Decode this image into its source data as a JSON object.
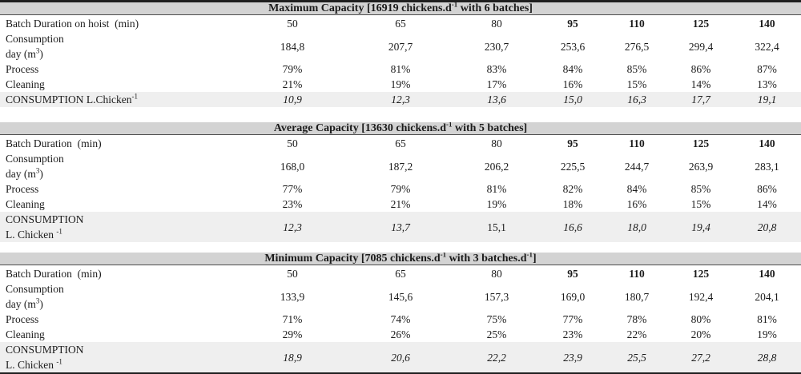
{
  "colors": {
    "caption_bg": "#d3d3d3",
    "highlight_bg": "#efefef",
    "border_dark": "#1f1f1f",
    "caption_rule": "#4d4d4d",
    "text": "#1b1b1b"
  },
  "tables": [
    {
      "name": "maximum-capacity",
      "caption": {
        "pre": "Maximum Capacity [16919 chickens.d",
        "sup1": "-1",
        "mid": " with 6 batches]",
        "sup2": "",
        "post": ""
      },
      "duration": {
        "label": "Batch Duration on hoist  (min)",
        "values": [
          "50",
          "65",
          "80",
          "95",
          "110",
          "125",
          "140"
        ]
      },
      "consumption_day": {
        "line1": "Consumption",
        "line2_pre": "day (m",
        "line2_sup": "3",
        "line2_post": ")",
        "values": [
          "184,8",
          "207,7",
          "230,7",
          "253,6",
          "276,5",
          "299,4",
          "322,4"
        ]
      },
      "process": {
        "label": "Process",
        "values": [
          "79%",
          "81%",
          "83%",
          "84%",
          "85%",
          "86%",
          "87%"
        ]
      },
      "cleaning": {
        "label": "Cleaning",
        "values": [
          "21%",
          "19%",
          "17%",
          "16%",
          "15%",
          "14%",
          "13%"
        ]
      },
      "consumption_chicken": {
        "line1": "CONSUMPTION L.Chicken",
        "line2": "",
        "sup": "-1",
        "values": [
          "10,9",
          "12,3",
          "13,6",
          "15,0",
          "16,3",
          "17,7",
          "19,1"
        ]
      }
    },
    {
      "name": "average-capacity",
      "caption": {
        "pre": "Average Capacity [13630 chickens.d",
        "sup1": "-1",
        "mid": " with 5 batches]",
        "sup2": "",
        "post": ""
      },
      "duration": {
        "label": "Batch Duration  (min)",
        "values": [
          "50",
          "65",
          "80",
          "95",
          "110",
          "125",
          "140"
        ]
      },
      "consumption_day": {
        "line1": "Consumption",
        "line2_pre": "day (m",
        "line2_sup": "3",
        "line2_post": ")",
        "values": [
          "168,0",
          "187,2",
          "206,2",
          "225,5",
          "244,7",
          "263,9",
          "283,1"
        ]
      },
      "process": {
        "label": "Process",
        "values": [
          "77%",
          "79%",
          "81%",
          "82%",
          "84%",
          "85%",
          "86%"
        ]
      },
      "cleaning": {
        "label": "Cleaning",
        "values": [
          "23%",
          "21%",
          "19%",
          "18%",
          "16%",
          "15%",
          "14%"
        ]
      },
      "consumption_chicken": {
        "line1": "CONSUMPTION",
        "line2": "L. Chicken ",
        "sup": "-1",
        "values": [
          "12,3",
          "13,7",
          "15,1",
          "16,6",
          "18,0",
          "19,4",
          "20,8"
        ]
      }
    },
    {
      "name": "minimum-capacity",
      "caption": {
        "pre": "Minimum Capacity [7085 chickens.d",
        "sup1": "-1",
        "mid": " with 3 batches.d",
        "sup2": "-1",
        "post": "]"
      },
      "duration": {
        "label": "Batch Duration  (min)",
        "values": [
          "50",
          "65",
          "80",
          "95",
          "110",
          "125",
          "140"
        ]
      },
      "consumption_day": {
        "line1": "Consumption",
        "line2_pre": "day (m",
        "line2_sup": "3",
        "line2_post": ")",
        "values": [
          "133,9",
          "145,6",
          "157,3",
          "169,0",
          "180,7",
          "192,4",
          "204,1"
        ]
      },
      "process": {
        "label": "Process",
        "values": [
          "71%",
          "74%",
          "75%",
          "77%",
          "78%",
          "80%",
          "81%"
        ]
      },
      "cleaning": {
        "label": "Cleaning",
        "values": [
          "29%",
          "26%",
          "25%",
          "23%",
          "22%",
          "20%",
          "19%"
        ]
      },
      "consumption_chicken": {
        "line1": "CONSUMPTION",
        "line2": "L. Chicken ",
        "sup": "-1",
        "values": [
          "18,9",
          "20,6",
          "22,2",
          "23,9",
          "25,5",
          "27,2",
          "28,8"
        ]
      }
    }
  ]
}
